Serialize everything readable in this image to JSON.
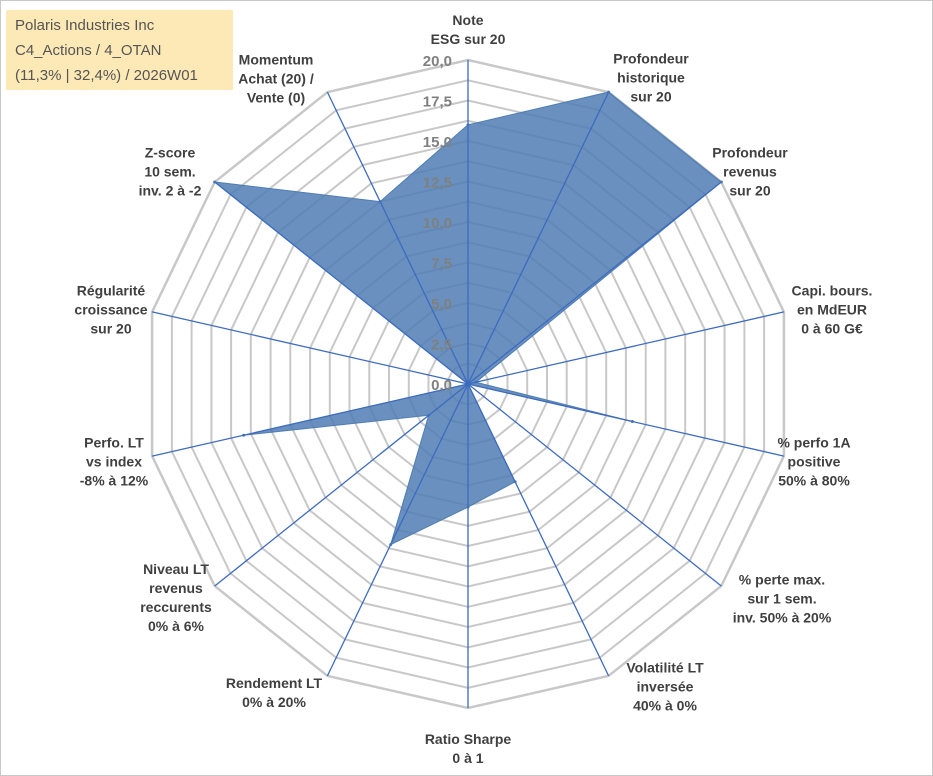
{
  "title_box": {
    "lines": [
      "Polaris Industries Inc",
      "C4_Actions / 4_OTAN",
      "(11,3% | 32,4%) / 2026W01"
    ]
  },
  "colors": {
    "fill": "#4f7db3",
    "axis_line": "#3d6bbf",
    "grid": "#c8c8c8",
    "tick_text": "#808080",
    "title_bg": "#fde9b5"
  },
  "chart_data": {
    "type": "radar",
    "rmax": 20,
    "tick_labels": [
      "0,0",
      "2,5",
      "5,0",
      "7,5",
      "10,0",
      "12,5",
      "15,0",
      "17,5",
      "20,0"
    ],
    "grid_step": 1.25,
    "axes": [
      {
        "lines": [
          "Note",
          "ESG sur 20"
        ]
      },
      {
        "lines": [
          "Profondeur",
          "historique",
          "sur 20"
        ]
      },
      {
        "lines": [
          "Profondeur",
          "revenus",
          "sur 20"
        ]
      },
      {
        "lines": [
          "Capi. bours.",
          "en MdEUR",
          "0 à 60 G€"
        ]
      },
      {
        "lines": [
          "% perfo 1A",
          "positive",
          "50% à 80%"
        ]
      },
      {
        "lines": [
          "% perte max.",
          "sur 1 sem.",
          "inv. 50% à 20%"
        ]
      },
      {
        "lines": [
          "Volatilité LT",
          "inversée",
          "40% à 0%"
        ]
      },
      {
        "lines": [
          "Ratio Sharpe",
          "0 à 1"
        ]
      },
      {
        "lines": [
          "Rendement LT",
          "0% à 20%"
        ]
      },
      {
        "lines": [
          "Niveau LT",
          "revenus",
          "reccurents",
          "0% à 6%"
        ]
      },
      {
        "lines": [
          "Perfo. LT",
          "vs index",
          "-8% à 12%"
        ]
      },
      {
        "lines": [
          "Régularité",
          "croissance",
          "sur 20"
        ]
      },
      {
        "lines": [
          "Z-score",
          "10 sem.",
          "inv. 2 à -2"
        ]
      },
      {
        "lines": [
          "Momentum",
          "Achat (20) /",
          "Vente (0)"
        ]
      }
    ],
    "series": [
      {
        "name": "Polaris Industries Inc",
        "values": [
          16,
          20,
          20,
          0.5,
          10.4,
          0,
          6.7,
          7.6,
          11,
          3.1,
          14.2,
          0,
          20,
          12.5
        ]
      }
    ]
  }
}
